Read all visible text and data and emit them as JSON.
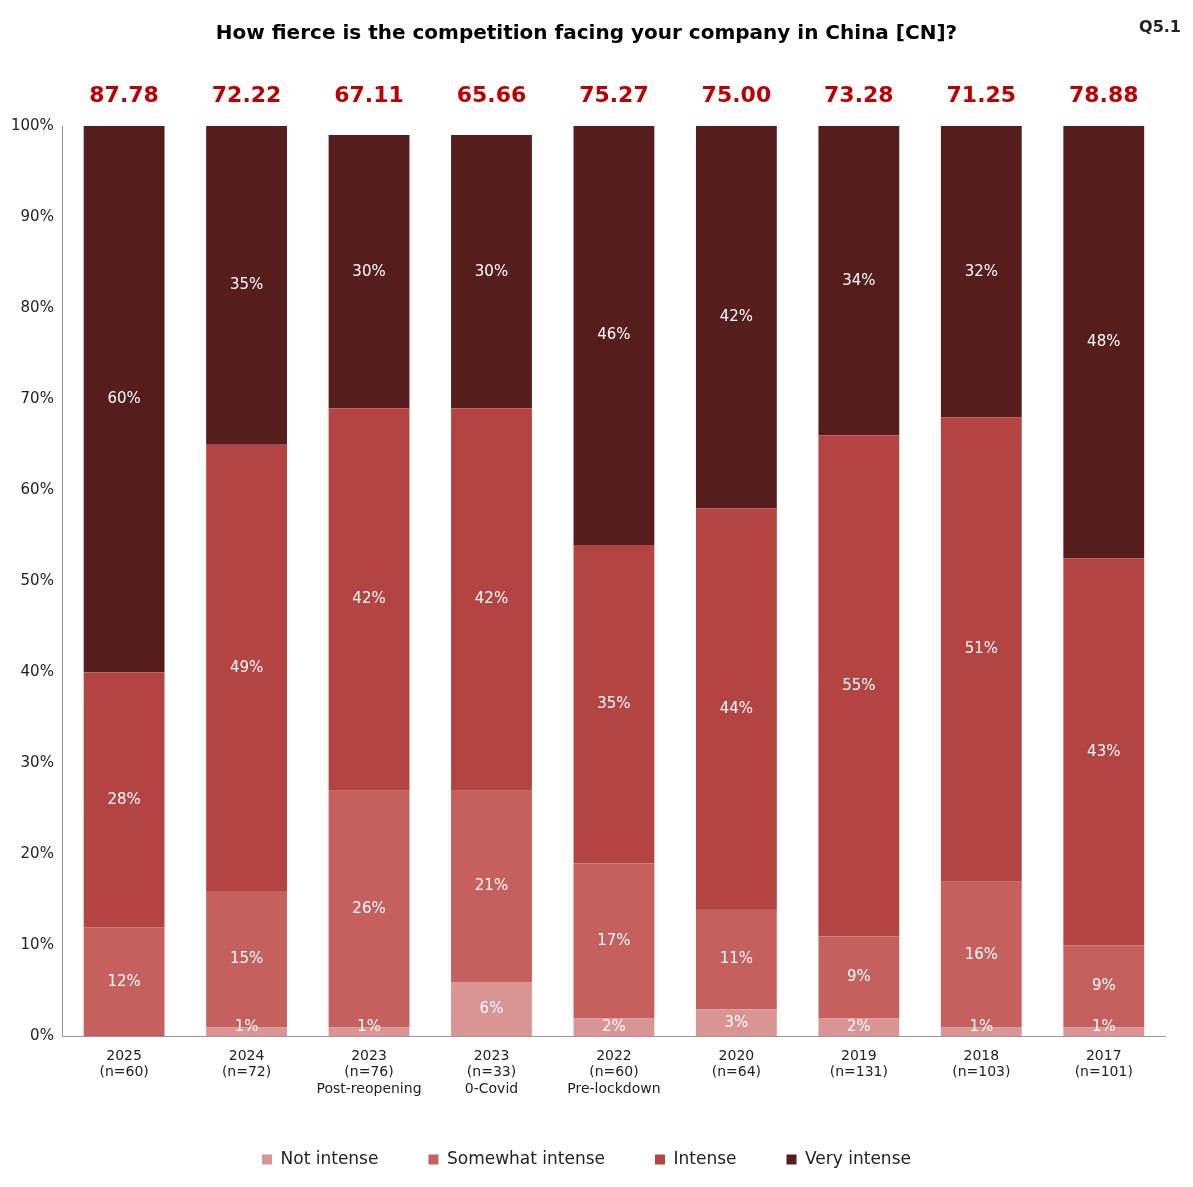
{
  "chart_data": {
    "type": "bar",
    "title": "How fierce is the competition facing your company in China [CN]?",
    "stacked": true,
    "legend": "bottom",
    "grid": false,
    "categories": [
      "2025\n(n=60)",
      "2024\n(n=72)",
      "2023\n(n=76)\nPost-reopening",
      "2023\n(n=33)\n0-Covid",
      "2022\n(n=60)\nPre-lockdown",
      "2020\n(n=64)",
      "2019\n(n=131)",
      "2018\n(n=103)",
      "2017\n(n=101)"
    ],
    "series": [
      {
        "name": "Not intense",
        "color": "#d99594",
        "values": [
          0,
          1,
          1,
          6,
          2,
          3,
          2,
          1,
          1
        ],
        "value_labels": [
          null,
          "1%",
          "1%",
          "6%",
          "2%",
          "3%",
          "2%",
          "1%",
          "1%"
        ]
      },
      {
        "name": "Somewhat intense",
        "color": "#c6605e",
        "values": [
          12,
          15,
          26,
          21,
          17,
          11,
          9,
          16,
          9
        ],
        "value_labels": [
          "12%",
          "15%",
          "26%",
          "21%",
          "17%",
          "11%",
          "9%",
          "16%",
          "9%"
        ]
      },
      {
        "name": "Intense",
        "color": "#b44441",
        "values": [
          28,
          49,
          42,
          42,
          35,
          44,
          55,
          51,
          42.5
        ],
        "value_labels": [
          "28%",
          "49%",
          "42%",
          "42%",
          "35%",
          "44%",
          "55%",
          "51%",
          "43%"
        ]
      },
      {
        "name": "Very intense",
        "color": "#561d1d",
        "values": [
          60,
          35,
          30,
          30,
          46,
          42,
          34,
          32,
          47.5
        ],
        "value_labels": [
          "60%",
          "35%",
          "30%",
          "30%",
          "46%",
          "42%",
          "34%",
          "32%",
          "48%"
        ]
      }
    ],
    "ylim": [
      0,
      100
    ],
    "yticks": [
      {
        "value": 0,
        "label": "0%"
      },
      {
        "value": 10,
        "label": "10%"
      },
      {
        "value": 20,
        "label": "20%"
      },
      {
        "value": 30,
        "label": "30%"
      },
      {
        "value": 40,
        "label": "40%"
      },
      {
        "value": 50,
        "label": "50%"
      },
      {
        "value": 60,
        "label": "60%"
      },
      {
        "value": 70,
        "label": "70%"
      },
      {
        "value": 80,
        "label": "80%"
      },
      {
        "value": 90,
        "label": "90%"
      },
      {
        "value": 100,
        "label": "100%"
      }
    ],
    "annotations": [
      "87.78",
      "72.22",
      "67.11",
      "65.66",
      "75.27",
      "75.00",
      "73.28",
      "71.25",
      "78.88",
      "Q5.1"
    ]
  }
}
